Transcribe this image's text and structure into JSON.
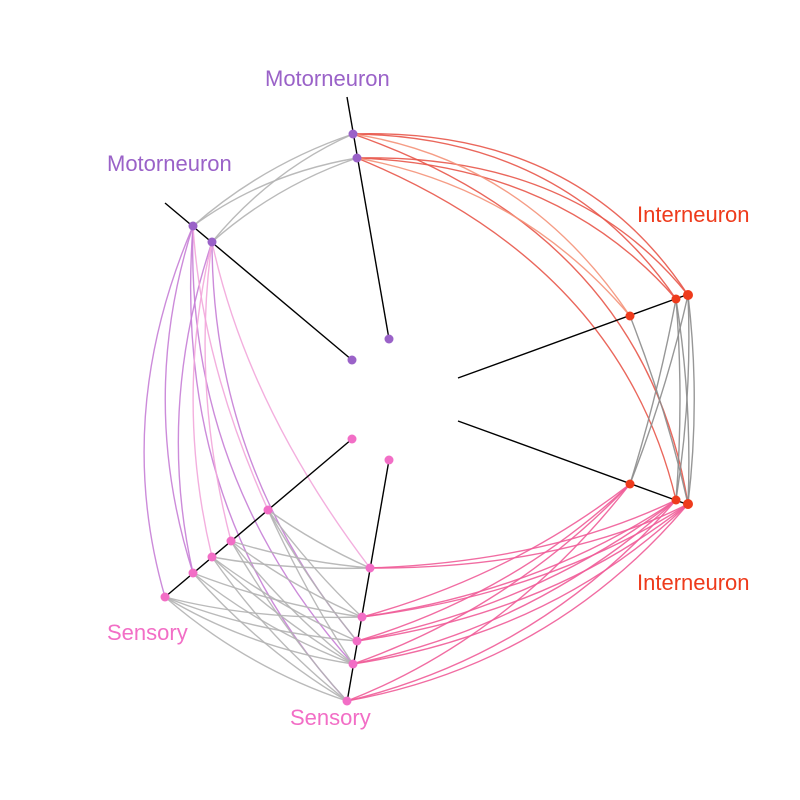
{
  "chart_data": {
    "type": "hive-plot",
    "colors": {
      "motorneuron": "#9a62c8",
      "interneuron": "#ee3b1c",
      "sensory": "#f26ec6",
      "axis": "#000000",
      "edge_neutral": "#b3b3b3",
      "edge_inter_neutral": "#8c8c8c",
      "edge_motor_inter": "#e8564a",
      "edge_motor_inter_light": "#f49279",
      "edge_sensory_inter": "#ef5c98",
      "edge_motor_sensory": "#c77ed6",
      "edge_motor_sensory_light": "#f2a6da"
    },
    "axes": [
      {
        "id": "motor-top",
        "label": "Motorneuron",
        "group": "motorneuron"
      },
      {
        "id": "motor-left",
        "label": "Motorneuron",
        "group": "motorneuron"
      },
      {
        "id": "inter-top",
        "label": "Interneuron",
        "group": "interneuron"
      },
      {
        "id": "inter-bottom",
        "label": "Interneuron",
        "group": "interneuron"
      },
      {
        "id": "sensory-left",
        "label": "Sensory",
        "group": "sensory"
      },
      {
        "id": "sensory-bottom",
        "label": "Sensory",
        "group": "sensory"
      }
    ]
  }
}
